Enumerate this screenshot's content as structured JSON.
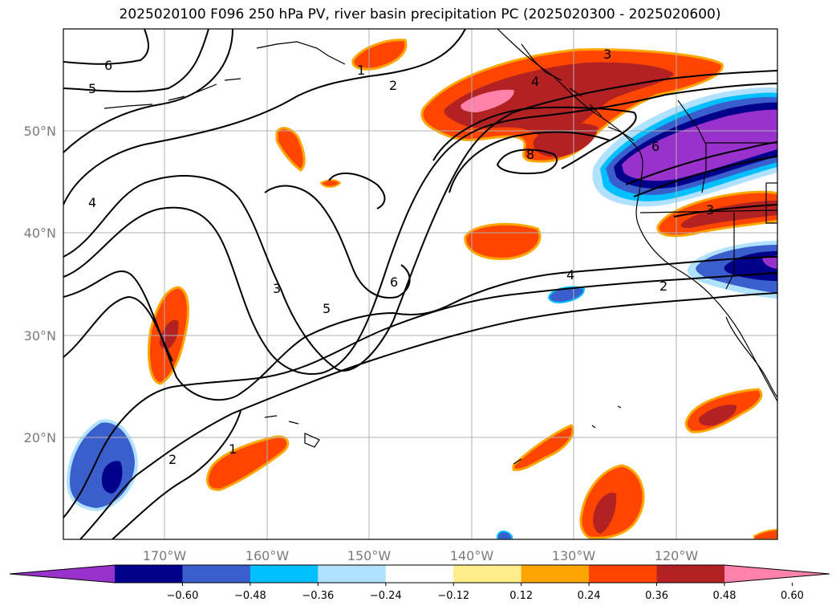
{
  "title": "2025020100 F096 250 hPa PV, river basin precipitation PC (2025020300 - 2025020600)",
  "map": {
    "lon_range": [
      -180,
      -110
    ],
    "lat_range": [
      10,
      60
    ],
    "lon_ticks": [
      {
        "value": -170,
        "label": "170°W"
      },
      {
        "value": -160,
        "label": "160°W"
      },
      {
        "value": -150,
        "label": "150°W"
      },
      {
        "value": -140,
        "label": "140°W"
      },
      {
        "value": -130,
        "label": "130°W"
      },
      {
        "value": -120,
        "label": "120°W"
      }
    ],
    "lat_ticks": [
      {
        "value": 20,
        "label": "20°N"
      },
      {
        "value": 30,
        "label": "30°N"
      },
      {
        "value": 40,
        "label": "40°N"
      },
      {
        "value": 50,
        "label": "50°N"
      }
    ],
    "grid": true,
    "contour_variable": "250 hPa PV",
    "contour_labels": [
      "6",
      "5",
      "4",
      "1",
      "2",
      "3",
      "4",
      "8",
      "6",
      "3",
      "6",
      "3",
      "5",
      "4",
      "2",
      "2",
      "1"
    ],
    "shading_variable": "river basin precipitation PC"
  },
  "colorbar": {
    "orientation": "horizontal",
    "extend": "both",
    "colors": [
      "#9932cc",
      "#00008b",
      "#3a5fcd",
      "#00bfff",
      "#b0e2ff",
      "#ffffff",
      "#ffec8b",
      "#ffa500",
      "#ff4500",
      "#b22222",
      "#ff82ab"
    ],
    "tick_labels": [
      "−0.60",
      "−0.48",
      "−0.36",
      "−0.24",
      "−0.12",
      "0.12",
      "0.24",
      "0.36",
      "0.48",
      "0.60"
    ]
  }
}
